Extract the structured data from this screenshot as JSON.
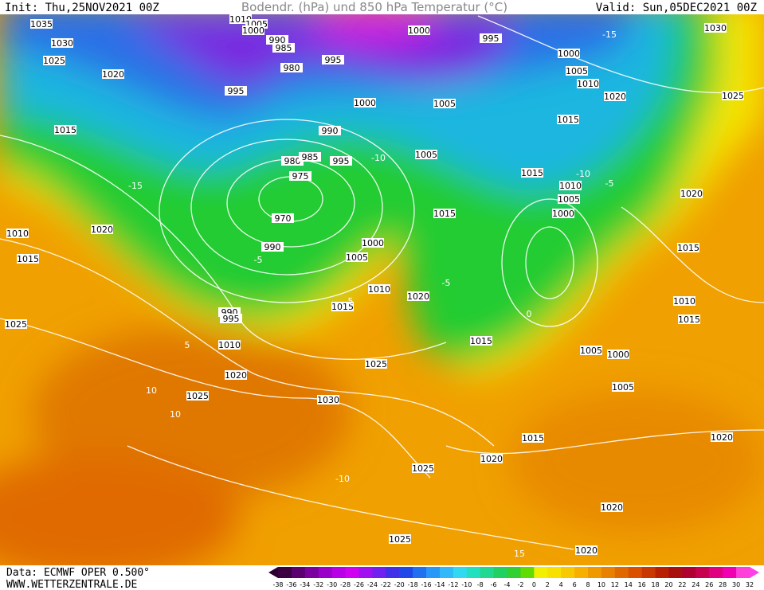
{
  "header": {
    "init": "Init: Thu,25NOV2021 00Z",
    "title": "Bodendr. (hPa) und 850 hPa Temperatur (°C)",
    "valid": "Valid: Sun,05DEC2021 00Z"
  },
  "footer": {
    "source": "Data: ECMWF OPER 0.500°",
    "site": "WWW.WETTERZENTRALE.DE"
  },
  "colorbar": {
    "labels": [
      -38,
      -36,
      -34,
      -32,
      -30,
      -28,
      -26,
      -24,
      -22,
      -20,
      -18,
      -16,
      -14,
      -12,
      -10,
      -8,
      -6,
      -4,
      -2,
      0,
      2,
      4,
      6,
      8,
      10,
      12,
      14,
      16,
      18,
      20,
      22,
      24,
      26,
      28,
      30,
      32
    ]
  },
  "isobar_labels": [
    "1035",
    "1030",
    "1025",
    "1020",
    "1015",
    "1010",
    "1015",
    "1020",
    "1025",
    "1010",
    "1020",
    "1025",
    "1030",
    "1025",
    "1015",
    "1010",
    "1020",
    "1005",
    "1000",
    "990",
    "970",
    "975",
    "980",
    "985",
    "995",
    "990",
    "1000",
    "995",
    "980",
    "985",
    "990",
    "995",
    "1010",
    "1005",
    "1000",
    "1000",
    "995",
    "1000",
    "1005",
    "1010",
    "1020",
    "1015",
    "1005",
    "1005",
    "1015",
    "1015",
    "1010",
    "1005",
    "1000",
    "1025",
    "1030",
    "1020",
    "1015",
    "1010",
    "1015",
    "1015",
    "1005",
    "1000",
    "1005",
    "1015",
    "1020",
    "1025",
    "1020",
    "1020",
    "1025",
    "1020",
    "990",
    "995"
  ],
  "temperature_labels": [
    "-15",
    "-10",
    "-5",
    "-5",
    "5",
    "10",
    "10",
    "-10",
    "5",
    "15",
    "-15",
    "-10",
    "-5",
    "0"
  ]
}
